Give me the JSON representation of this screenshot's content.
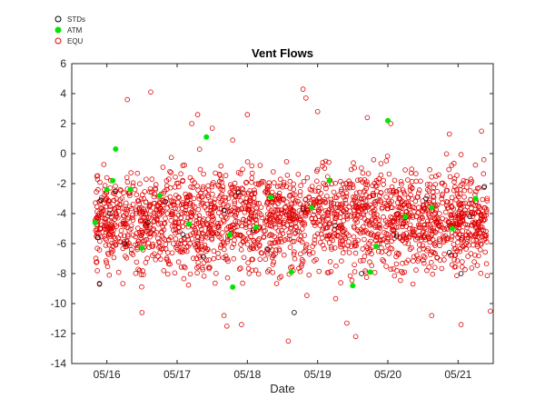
{
  "chart_data": {
    "type": "scatter",
    "title": "Vent Flows",
    "xlabel": "Date",
    "ylabel": "",
    "xlim": [
      "2020-05-15 12:00",
      "2020-05-21 12:00"
    ],
    "ylim": [
      -14,
      6
    ],
    "x_ticks": [
      "05/16",
      "05/17",
      "05/18",
      "05/19",
      "05/20",
      "05/21"
    ],
    "y_ticks": [
      -14,
      -12,
      -10,
      -8,
      -6,
      -4,
      -2,
      0,
      2,
      4,
      6
    ],
    "grid": false,
    "legend_position": "top-left, outside plot area",
    "series": [
      {
        "name": "STDs",
        "marker": "open-circle",
        "color": "#000000",
        "points": [
          [
            "2020-05-15 21:00",
            -5.6
          ],
          [
            "2020-05-15 21:30",
            -8.7
          ],
          [
            "2020-05-15 22:00",
            -3.1
          ],
          [
            "2020-05-16 01:00",
            -4.0
          ],
          [
            "2020-05-16 03:00",
            -2.5
          ],
          [
            "2020-05-16 06:00",
            -6.0
          ],
          [
            "2020-05-16 14:00",
            -4.6
          ],
          [
            "2020-05-16 20:00",
            -3.2
          ],
          [
            "2020-05-17 02:00",
            -5.4
          ],
          [
            "2020-05-17 09:00",
            -6.9
          ],
          [
            "2020-05-17 16:00",
            -3.8
          ],
          [
            "2020-05-17 21:00",
            -2.6
          ],
          [
            "2020-05-18 02:00",
            -5.1
          ],
          [
            "2020-05-18 07:00",
            -6.4
          ],
          [
            "2020-05-18 16:00",
            -10.6
          ],
          [
            "2020-05-18 19:00",
            -3.7
          ],
          [
            "2020-05-19 06:00",
            -4.8
          ],
          [
            "2020-05-19 15:00",
            -8.0
          ],
          [
            "2020-05-20 03:00",
            -5.5
          ],
          [
            "2020-05-20 13:00",
            -3.0
          ],
          [
            "2020-05-20 21:00",
            -6.6
          ],
          [
            "2020-05-21 01:00",
            -8.0
          ],
          [
            "2020-05-21 04:00",
            -4.2
          ],
          [
            "2020-05-21 09:00",
            -2.2
          ]
        ]
      },
      {
        "name": "ATM",
        "marker": "filled-circle",
        "color": "#00e600",
        "points": [
          [
            "2020-05-15 20:00",
            -4.6
          ],
          [
            "2020-05-16 00:00",
            -2.4
          ],
          [
            "2020-05-16 02:00",
            -1.8
          ],
          [
            "2020-05-16 03:00",
            0.3
          ],
          [
            "2020-05-16 08:00",
            -2.4
          ],
          [
            "2020-05-16 12:00",
            -6.3
          ],
          [
            "2020-05-16 18:00",
            -2.8
          ],
          [
            "2020-05-17 04:00",
            -4.7
          ],
          [
            "2020-05-17 10:00",
            1.1
          ],
          [
            "2020-05-17 18:00",
            -5.4
          ],
          [
            "2020-05-17 19:00",
            -8.9
          ],
          [
            "2020-05-18 03:00",
            -4.9
          ],
          [
            "2020-05-18 08:00",
            -2.9
          ],
          [
            "2020-05-18 15:00",
            -7.9
          ],
          [
            "2020-05-18 22:00",
            -3.6
          ],
          [
            "2020-05-19 04:00",
            -1.8
          ],
          [
            "2020-05-19 12:00",
            -8.8
          ],
          [
            "2020-05-19 18:00",
            -7.9
          ],
          [
            "2020-05-19 20:00",
            -6.2
          ],
          [
            "2020-05-20 00:00",
            2.2
          ],
          [
            "2020-05-20 06:00",
            -4.2
          ],
          [
            "2020-05-20 15:00",
            -3.6
          ],
          [
            "2020-05-20 22:00",
            -5.0
          ],
          [
            "2020-05-21 06:00",
            -3.0
          ]
        ]
      },
      {
        "name": "EQU",
        "marker": "open-circle",
        "color": "#e00000",
        "outliers": [
          [
            "2020-05-16 07:00",
            3.6
          ],
          [
            "2020-05-16 12:00",
            -10.6
          ],
          [
            "2020-05-16 15:00",
            4.1
          ],
          [
            "2020-05-17 05:00",
            2.0
          ],
          [
            "2020-05-17 07:00",
            2.6
          ],
          [
            "2020-05-17 12:00",
            1.7
          ],
          [
            "2020-05-17 16:00",
            -10.8
          ],
          [
            "2020-05-17 17:00",
            -11.5
          ],
          [
            "2020-05-17 19:00",
            0.9
          ],
          [
            "2020-05-17 22:00",
            -11.4
          ],
          [
            "2020-05-18 00:00",
            2.6
          ],
          [
            "2020-05-18 14:00",
            -12.5
          ],
          [
            "2020-05-18 19:00",
            4.3
          ],
          [
            "2020-05-18 20:00",
            3.7
          ],
          [
            "2020-05-19 00:00",
            2.8
          ],
          [
            "2020-05-19 10:00",
            -11.3
          ],
          [
            "2020-05-19 13:00",
            -12.2
          ],
          [
            "2020-05-19 17:00",
            2.4
          ],
          [
            "2020-05-20 01:00",
            2.0
          ],
          [
            "2020-05-20 15:00",
            -10.8
          ],
          [
            "2020-05-20 21:00",
            1.3
          ],
          [
            "2020-05-21 01:00",
            -11.4
          ],
          [
            "2020-05-21 08:00",
            1.5
          ],
          [
            "2020-05-21 11:00",
            -10.5
          ]
        ],
        "distribution": {
          "point_count": 2200,
          "x_range": [
            "2020-05-15 20:00",
            "2020-05-21 10:00"
          ],
          "center": -4.4,
          "spread": 2.2,
          "range": [
            -12.5,
            4.3
          ]
        }
      }
    ]
  }
}
